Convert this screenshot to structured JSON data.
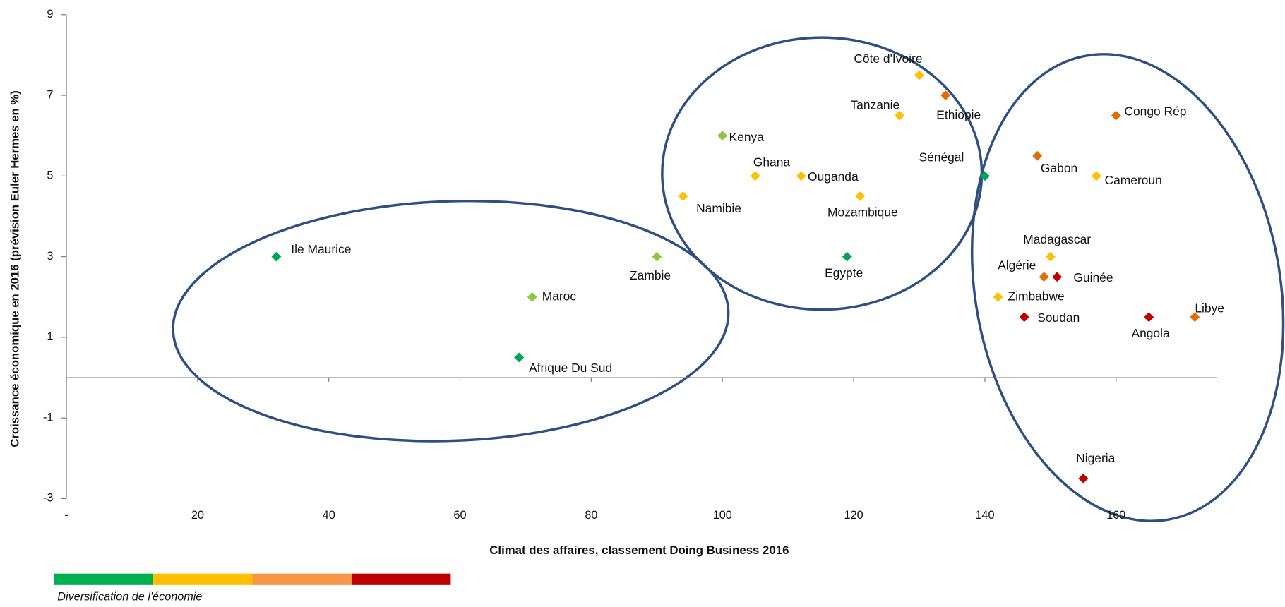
{
  "chart_data": {
    "type": "scatter",
    "x_label": "Climat des affaires, classement Doing Business 2016",
    "y_label": "Croissance économique en 2016 (prévision Euler Hermes en %)",
    "labels": [
      "Ile Maurice",
      "Maroc",
      "Afrique Du Sud",
      "Zambie",
      "Kenya",
      "Ghana",
      "Namibie",
      "Ouganda",
      "Mozambique",
      "Egypte",
      "Côte d'Ivoire",
      "Ethiopie",
      "Tanzanie",
      "Sénégal",
      "Congo Rép",
      "Gabon",
      "Cameroun",
      "Madagascar",
      "Algérie",
      "Guinée",
      "Zimbabwe",
      "Soudan",
      "Angola",
      "Libye",
      "Nigeria"
    ],
    "x": [
      32,
      71,
      69,
      90,
      100,
      105,
      94,
      112,
      121,
      119,
      130,
      134,
      127,
      140,
      160,
      148,
      157,
      150,
      149,
      151,
      142,
      146,
      165,
      172,
      155
    ],
    "values": [
      3,
      2,
      0.5,
      3,
      6,
      5,
      4.5,
      5,
      4.5,
      3,
      7.5,
      7,
      6.5,
      5,
      6.5,
      5.5,
      5,
      3,
      2.5,
      2.5,
      2,
      1.5,
      1.5,
      1.5,
      -2.5
    ],
    "colors": [
      "#00a651",
      "#8dc63f",
      "#00a651",
      "#8dc63f",
      "#8dc63f",
      "#ffc000",
      "#ffc000",
      "#ffc000",
      "#ffc000",
      "#00a651",
      "#ffc000",
      "#e36c0a",
      "#ffc000",
      "#00a651",
      "#e36c0a",
      "#e36c0a",
      "#ffc000",
      "#ffc000",
      "#e36c0a",
      "#c00000",
      "#ffc000",
      "#c00000",
      "#c00000",
      "#e36c0a",
      "#c00000"
    ],
    "xlim": [
      0,
      175
    ],
    "ylim": [
      -3,
      9
    ],
    "xticks": [
      {
        "value": 0,
        "label": "-"
      },
      20,
      40,
      60,
      80,
      100,
      120,
      140,
      160
    ],
    "yticks": [
      -3,
      -1,
      1,
      3,
      5,
      7,
      9
    ],
    "legend": {
      "label": "Diversification de l'économie",
      "colors": [
        "#00b050",
        "#ffc000",
        "#f79646",
        "#c00000"
      ]
    }
  }
}
